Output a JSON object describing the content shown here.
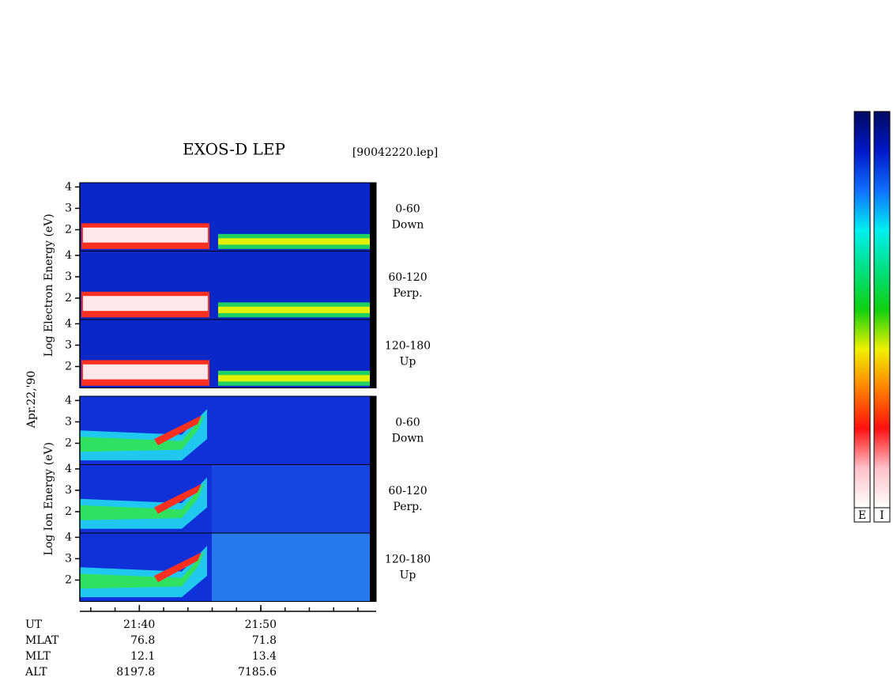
{
  "chart_data": {
    "type": "spectrogram",
    "title": "EXOS-D LEP",
    "file_label": "[90042220.lep]",
    "date_label": "Apr.22,'90",
    "ylim": [
      1,
      4.2
    ],
    "yticks": [
      2,
      3,
      4
    ],
    "xlabel": "UT",
    "xlim": [
      35.1,
      59.5
    ],
    "xticks": [
      {
        "value": 40,
        "label": "21:40"
      },
      {
        "value": 50,
        "label": "21:50"
      }
    ],
    "minor_xticks": [
      36,
      38,
      40,
      42,
      44,
      46,
      48,
      50,
      52,
      54,
      56,
      58
    ],
    "groups": [
      {
        "ylabel": "Log Electron Energy (eV)",
        "panels": [
          {
            "label": [
              "0-60",
              "Down"
            ]
          },
          {
            "label": [
              "60-120",
              "Perp."
            ]
          },
          {
            "label": [
              "120-180",
              "Up"
            ]
          }
        ]
      },
      {
        "ylabel": "Log Ion Energy (eV)",
        "panels": [
          {
            "label": [
              "0-60",
              "Down"
            ]
          },
          {
            "label": [
              "60-120",
              "Perp."
            ]
          },
          {
            "label": [
              "120-180",
              "Up"
            ]
          }
        ]
      }
    ],
    "orbit_rows": [
      {
        "name": "MLAT",
        "values": [
          76.8,
          71.8
        ]
      },
      {
        "name": "MLT",
        "values": [
          12.1,
          13.4
        ]
      },
      {
        "name": "ALT",
        "values": [
          8197.8,
          7185.6
        ]
      }
    ],
    "colorbar": {
      "labels": [
        "E",
        "I"
      ],
      "colors": [
        "#000a60",
        "#0018c8",
        "#1070ff",
        "#00f0f0",
        "#00e080",
        "#10d010",
        "#f0f000",
        "#ff8000",
        "#ff1010",
        "#ffc0c8",
        "#ffffff"
      ]
    }
  }
}
